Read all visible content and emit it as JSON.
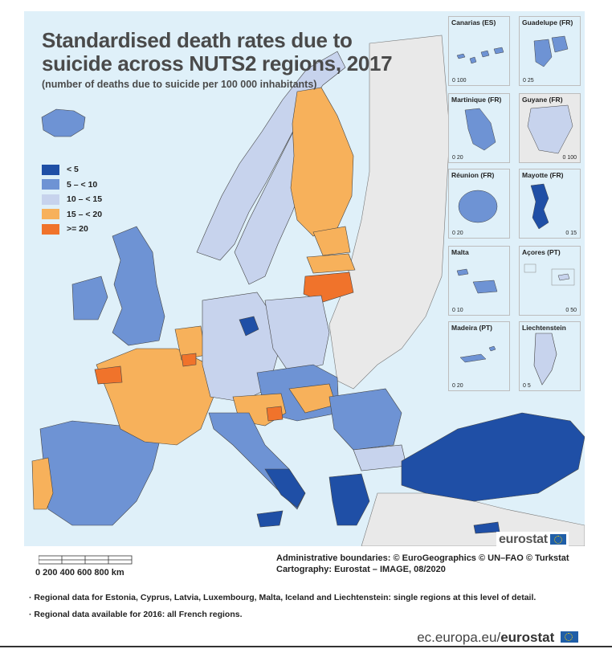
{
  "title": "Standardised death rates due to suicide across NUTS2 regions, 2017",
  "subtitle": "(number of deaths due to suicide per 100 000 inhabitants)",
  "legend": [
    {
      "label": "< 5",
      "color": "#1f4fa6"
    },
    {
      "label": "5 – < 10",
      "color": "#6e93d4"
    },
    {
      "label": "10 – < 15",
      "color": "#c7d3ed"
    },
    {
      "label": "15 – < 20",
      "color": "#f7b15b"
    },
    {
      "label": ">= 20",
      "color": "#f0732b"
    }
  ],
  "colors": {
    "sea": "#dff0f9",
    "non_eu": "#e9e9e9",
    "border": "#555555"
  },
  "insets": [
    {
      "name": "Canarias (ES)",
      "scale": [
        "0",
        "100"
      ]
    },
    {
      "name": "Guadelupe (FR)",
      "scale": [
        "0",
        "25"
      ]
    },
    {
      "name": "Martinique (FR)",
      "scale": [
        "0",
        "20"
      ]
    },
    {
      "name": "Guyane (FR)",
      "scale": [
        "0",
        "100"
      ]
    },
    {
      "name": "Réunion (FR)",
      "scale": [
        "0",
        "20"
      ]
    },
    {
      "name": "Mayotte (FR)",
      "scale": [
        "0",
        "15"
      ]
    },
    {
      "name": "Malta",
      "scale": [
        "0",
        "10"
      ]
    },
    {
      "name": "Açores (PT)",
      "scale": [
        "0",
        "50"
      ]
    },
    {
      "name": "Madeira (PT)",
      "scale": [
        "0",
        "20"
      ]
    },
    {
      "name": "Liechtenstein",
      "scale": [
        "0",
        "5"
      ]
    }
  ],
  "brand": "eurostat",
  "scale_labels": "0   200  400  600  800 km",
  "credits": {
    "line1": "Administrative boundaries: © EuroGeographics © UN–FAO © Turkstat",
    "line2": "Cartography: Eurostat – IMAGE, 08/2020"
  },
  "notes": [
    "Regional data for Estonia, Cyprus, Latvia, Luxembourg, Malta, Iceland and Liechtenstein: single regions at this level of detail.",
    "Regional data available for 2016: all French regions."
  ],
  "footer": {
    "domain": "ec.europa.eu/",
    "brand": "eurostat"
  }
}
